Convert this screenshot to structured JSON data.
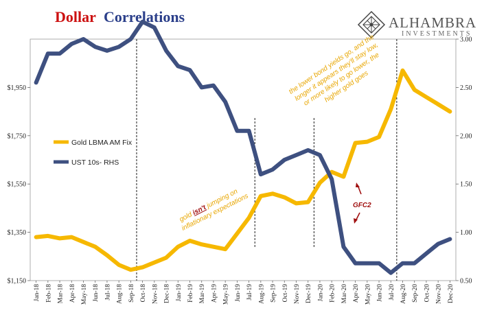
{
  "chart_data": {
    "type": "line",
    "title_part1": "Dollar",
    "title_part2": "Correlations",
    "colors": {
      "gold": "#F6B800",
      "ust": "#3E5080",
      "title_red": "#CC1111",
      "title_blue": "#2B3F8A",
      "anno_gold": "#E8A600",
      "anno_red": "#A01010"
    },
    "x_categories": [
      "Jan-18",
      "Feb-18",
      "Mar-18",
      "Apr-18",
      "May-18",
      "Jun-18",
      "Jul-18",
      "Aug-18",
      "Sep-18",
      "Oct-18",
      "Nov-18",
      "Dec-18",
      "Jan-19",
      "Feb-19",
      "Mar-19",
      "Apr-19",
      "May-19",
      "Jun-19",
      "Jul-19",
      "Aug-19",
      "Sep-19",
      "Oct-19",
      "Nov-19",
      "Dec-19",
      "Jan-20",
      "Feb-20",
      "Mar-20",
      "Apr-20",
      "May-20",
      "Jun-20",
      "Jul-20",
      "Aug-20",
      "Sep-20",
      "Oct-20",
      "Nov-20",
      "Dec-20"
    ],
    "y_left": {
      "range": [
        1150,
        2150
      ],
      "ticks": [
        1150,
        1350,
        1550,
        1750,
        1950
      ],
      "tick_labels": [
        "$1,150",
        "$1,350",
        "$1,550",
        "$1,750",
        "$1,950"
      ]
    },
    "y_right": {
      "range": [
        0.5,
        3.0
      ],
      "ticks": [
        0.5,
        1.0,
        1.5,
        2.0,
        2.5,
        3.0
      ],
      "tick_labels": [
        "0.50",
        "1.00",
        "1.50",
        "2.00",
        "2.50",
        "3.00"
      ]
    },
    "series": [
      {
        "name": "Gold LBMA AM Fix",
        "axis": "left",
        "color_key": "gold",
        "values": [
          1330,
          1335,
          1325,
          1330,
          1310,
          1290,
          1255,
          1215,
          1195,
          1205,
          1225,
          1245,
          1290,
          1315,
          1300,
          1290,
          1280,
          1345,
          1410,
          1500,
          1510,
          1495,
          1470,
          1475,
          1555,
          1600,
          1580,
          1720,
          1725,
          1745,
          1860,
          2020,
          1940,
          1910,
          1880,
          1850
        ]
      },
      {
        "name": "UST 10s- RHS",
        "axis": "right",
        "color_key": "ust",
        "values": [
          2.55,
          2.85,
          2.85,
          2.95,
          3.0,
          2.92,
          2.88,
          2.92,
          3.0,
          3.18,
          3.12,
          2.88,
          2.72,
          2.68,
          2.5,
          2.52,
          2.35,
          2.05,
          2.05,
          1.6,
          1.65,
          1.75,
          1.8,
          1.85,
          1.8,
          1.55,
          0.85,
          0.68,
          0.68,
          0.68,
          0.58,
          0.68,
          0.68,
          0.78,
          0.88,
          0.93
        ]
      }
    ],
    "legend": [
      "Gold LBMA AM Fix",
      "UST 10s- RHS"
    ],
    "vlines_after": [
      "Sep-18",
      "Jul-19",
      "Dec-19",
      "Jul-20"
    ],
    "annotations": {
      "gold_prefix": "gold ",
      "gold_isnt": "isn't",
      "gold_suffix": " jumping on",
      "gold_line2": "inflationary expectations",
      "top_lines": [
        "the lower bond yields go, and the",
        "longer it appears they'll stay low,",
        "or more likely to go lower, the",
        "higher gold goes"
      ],
      "gfc2": "GFC2"
    }
  },
  "logo": {
    "main": "ALHAMBRA",
    "sub": "INVESTMENTS"
  }
}
